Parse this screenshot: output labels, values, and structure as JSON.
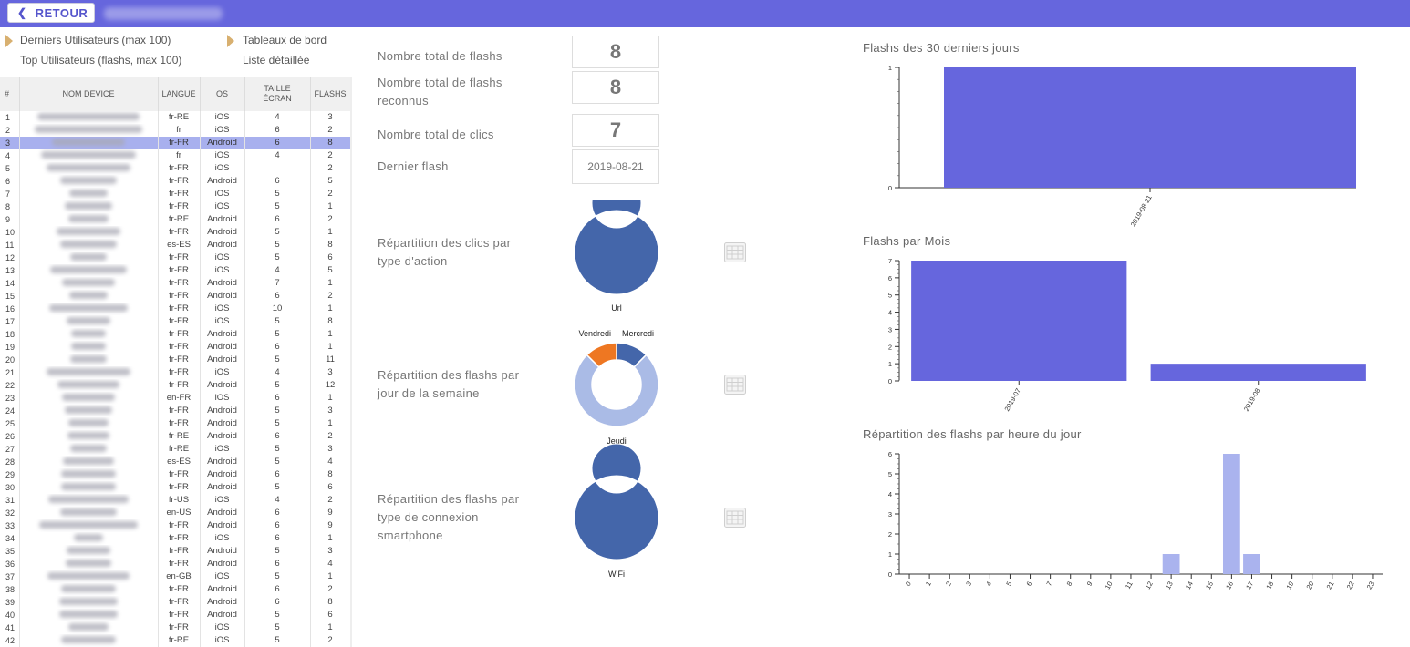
{
  "header": {
    "back_label": "RETOUR"
  },
  "nav": {
    "last_users": "Derniers Utilisateurs (max 100)",
    "top_users": "Top Utilisateurs (flashs, max 100)",
    "dashboards": "Tableaux de bord",
    "detailed_list": "Liste détaillée"
  },
  "table": {
    "headers": [
      "#",
      "NOM DEVICE",
      "LANGUE",
      "OS",
      "TAILLE ÉCRAN",
      "FLASHS"
    ],
    "selected_row": 3,
    "rows": [
      [
        "1",
        "fr-RE",
        "iOS",
        "4",
        "3"
      ],
      [
        "2",
        "fr",
        "iOS",
        "6",
        "2"
      ],
      [
        "3",
        "fr-FR",
        "Android",
        "6",
        "8"
      ],
      [
        "4",
        "fr",
        "iOS",
        "4",
        "2"
      ],
      [
        "5",
        "fr-FR",
        "iOS",
        "",
        "2"
      ],
      [
        "6",
        "fr-FR",
        "Android",
        "6",
        "5"
      ],
      [
        "7",
        "fr-FR",
        "iOS",
        "5",
        "2"
      ],
      [
        "8",
        "fr-FR",
        "iOS",
        "5",
        "1"
      ],
      [
        "9",
        "fr-RE",
        "Android",
        "6",
        "2"
      ],
      [
        "10",
        "fr-FR",
        "Android",
        "5",
        "1"
      ],
      [
        "11",
        "es-ES",
        "Android",
        "5",
        "8"
      ],
      [
        "12",
        "fr-FR",
        "iOS",
        "5",
        "6"
      ],
      [
        "13",
        "fr-FR",
        "iOS",
        "4",
        "5"
      ],
      [
        "14",
        "fr-FR",
        "Android",
        "7",
        "1"
      ],
      [
        "15",
        "fr-FR",
        "Android",
        "6",
        "2"
      ],
      [
        "16",
        "fr-FR",
        "iOS",
        "10",
        "1"
      ],
      [
        "17",
        "fr-FR",
        "iOS",
        "5",
        "8"
      ],
      [
        "18",
        "fr-FR",
        "Android",
        "5",
        "1"
      ],
      [
        "19",
        "fr-FR",
        "Android",
        "6",
        "1"
      ],
      [
        "20",
        "fr-FR",
        "Android",
        "5",
        "11"
      ],
      [
        "21",
        "fr-FR",
        "iOS",
        "4",
        "3"
      ],
      [
        "22",
        "fr-FR",
        "Android",
        "5",
        "12"
      ],
      [
        "23",
        "en-FR",
        "iOS",
        "6",
        "1"
      ],
      [
        "24",
        "fr-FR",
        "Android",
        "5",
        "3"
      ],
      [
        "25",
        "fr-FR",
        "Android",
        "5",
        "1"
      ],
      [
        "26",
        "fr-RE",
        "Android",
        "6",
        "2"
      ],
      [
        "27",
        "fr-RE",
        "iOS",
        "5",
        "3"
      ],
      [
        "28",
        "es-ES",
        "Android",
        "5",
        "4"
      ],
      [
        "29",
        "fr-FR",
        "Android",
        "6",
        "8"
      ],
      [
        "30",
        "fr-FR",
        "Android",
        "5",
        "6"
      ],
      [
        "31",
        "fr-US",
        "iOS",
        "4",
        "2"
      ],
      [
        "32",
        "en-US",
        "Android",
        "6",
        "9"
      ],
      [
        "33",
        "fr-FR",
        "Android",
        "6",
        "9"
      ],
      [
        "34",
        "fr-FR",
        "iOS",
        "6",
        "1"
      ],
      [
        "35",
        "fr-FR",
        "Android",
        "5",
        "3"
      ],
      [
        "36",
        "fr-FR",
        "Android",
        "6",
        "4"
      ],
      [
        "37",
        "en-GB",
        "iOS",
        "5",
        "1"
      ],
      [
        "38",
        "fr-FR",
        "Android",
        "6",
        "2"
      ],
      [
        "39",
        "fr-FR",
        "Android",
        "6",
        "8"
      ],
      [
        "40",
        "fr-FR",
        "Android",
        "5",
        "6"
      ],
      [
        "41",
        "fr-FR",
        "iOS",
        "5",
        "1"
      ],
      [
        "42",
        "fr-RE",
        "iOS",
        "5",
        "2"
      ]
    ]
  },
  "stats": {
    "total_flashs_label": "Nombre total de flashs",
    "total_flashs": "8",
    "recognized_label": "Nombre total de flashs reconnus",
    "recognized": "8",
    "clicks_label": "Nombre total de clics",
    "clicks": "7",
    "last_flash_label": "Dernier flash",
    "last_flash": "2019-08-21"
  },
  "donuts": {
    "clicks_label": "Répartition des clics par type d'action",
    "weekday_label": "Répartition des flashs par jour de la semaine",
    "connection_label": "Répartition des flashs par type de connexion smartphone"
  },
  "colors": {
    "header": "#6666dd",
    "bar": "#6666dd",
    "donut_main": "#4466aa",
    "donut_light": "#aabbe6",
    "donut_orange": "#ee7722",
    "hour_bar": "#aab3ee"
  },
  "chart_data": [
    {
      "type": "pie",
      "title": "",
      "slices": [
        {
          "label": "Url",
          "value": 7
        }
      ]
    },
    {
      "type": "pie",
      "title": "",
      "slices": [
        {
          "label": "Mercredi",
          "value": 1
        },
        {
          "label": "Jeudi",
          "value": 6
        },
        {
          "label": "Vendredi",
          "value": 1
        }
      ]
    },
    {
      "type": "pie",
      "title": "",
      "slices": [
        {
          "label": "WiFi",
          "value": 8
        }
      ]
    },
    {
      "type": "bar",
      "title": "Flashs des 30 derniers jours",
      "categories": [
        "2019-08-21"
      ],
      "values": [
        1
      ],
      "ylim": [
        0,
        1
      ],
      "yticks": [
        "0",
        "1"
      ]
    },
    {
      "type": "bar",
      "title": "Flashs par Mois",
      "categories": [
        "2019-07",
        "2019-08"
      ],
      "values": [
        7,
        1
      ],
      "ylim": [
        0,
        7
      ],
      "yticks": [
        "0",
        "1",
        "2",
        "3",
        "4",
        "5",
        "6",
        "7"
      ]
    },
    {
      "type": "bar",
      "title": "Répartition des flashs par heure du jour",
      "categories": [
        "0",
        "1",
        "2",
        "3",
        "4",
        "5",
        "6",
        "7",
        "8",
        "9",
        "10",
        "11",
        "12",
        "13",
        "14",
        "15",
        "16",
        "17",
        "18",
        "19",
        "20",
        "21",
        "22",
        "23"
      ],
      "values": [
        0,
        0,
        0,
        0,
        0,
        0,
        0,
        0,
        0,
        0,
        0,
        0,
        0,
        1,
        0,
        0,
        6,
        1,
        0,
        0,
        0,
        0,
        0,
        0
      ],
      "ylim": [
        0,
        6
      ],
      "yticks": [
        "0",
        "1",
        "2",
        "3",
        "4",
        "5",
        "6"
      ]
    }
  ]
}
